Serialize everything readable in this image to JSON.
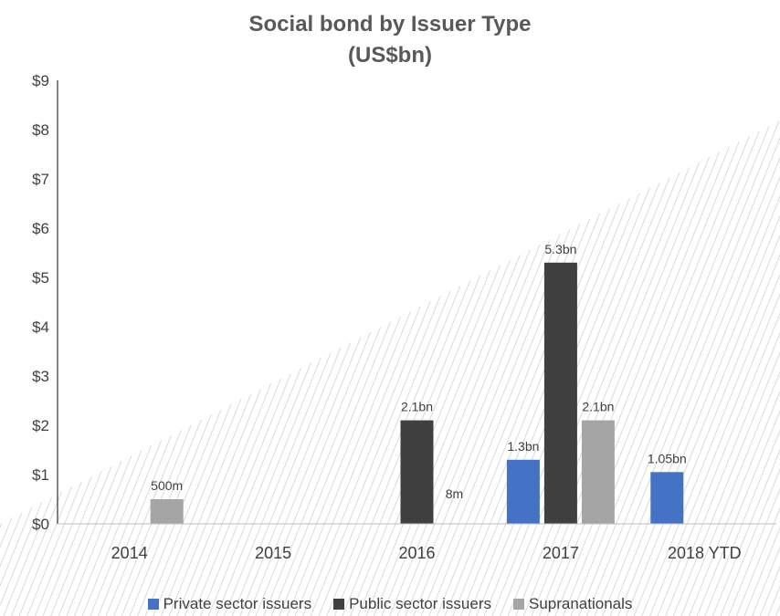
{
  "chart_data": {
    "type": "bar",
    "title_lines": [
      "Social bond by Issuer Type",
      "(US$bn)"
    ],
    "categories": [
      "2014",
      "2015",
      "2016",
      "2017",
      "2018 YTD"
    ],
    "series": [
      {
        "name": "Private sector issuers",
        "color": "#4472C4",
        "values": [
          0,
          0,
          0,
          1.3,
          1.05
        ]
      },
      {
        "name": "Public sector issuers",
        "color": "#404040",
        "values": [
          0,
          0,
          2.1,
          5.3,
          0
        ]
      },
      {
        "name": "Supranationals",
        "color": "#A5A5A5",
        "values": [
          0.5,
          0,
          0.008,
          2.1,
          0
        ]
      }
    ],
    "data_labels": [
      {
        "category": "2014",
        "series": "Supranationals",
        "text": "500m"
      },
      {
        "category": "2016",
        "series": "Public sector issuers",
        "text": "2.1bn"
      },
      {
        "category": "2016",
        "series": "Supranationals",
        "text": "8m"
      },
      {
        "category": "2017",
        "series": "Private sector issuers",
        "text": "1.3bn"
      },
      {
        "category": "2017",
        "series": "Public sector issuers",
        "text": "5.3bn"
      },
      {
        "category": "2017",
        "series": "Supranationals",
        "text": "2.1bn"
      },
      {
        "category": "2018 YTD",
        "series": "Private sector issuers",
        "text": "1.05bn"
      }
    ],
    "ylim": [
      0,
      9
    ],
    "y_ticks": [
      "$0",
      "$1",
      "$2",
      "$3",
      "$4",
      "$5",
      "$6",
      "$7",
      "$8",
      "$9"
    ],
    "grid": false,
    "legend_position": "bottom",
    "background": "diagonal hatch pattern"
  }
}
